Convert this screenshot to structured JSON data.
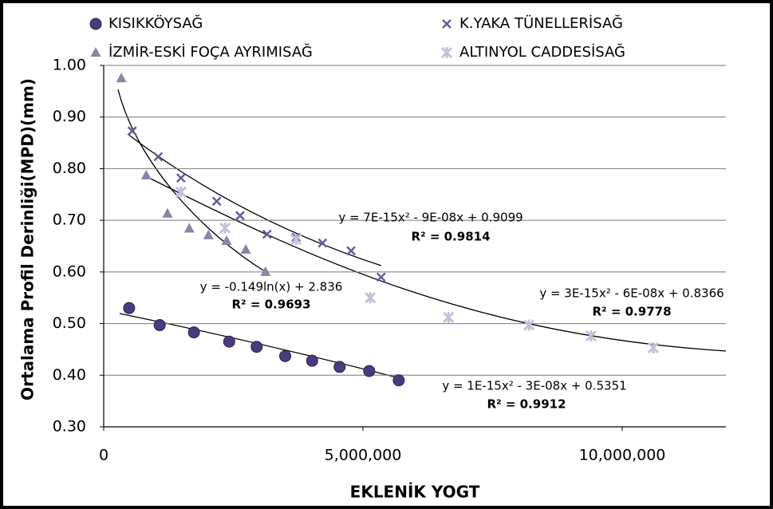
{
  "chart_data": {
    "type": "scatter",
    "x_label": "EKLENİK YOGT",
    "y_label": "Ortalama Profil Derinliği(MPD)(mm)",
    "xlim": [
      0,
      12000000
    ],
    "xticks": [
      0,
      {
        "value": 5000000,
        "label": "5,000,000"
      },
      {
        "value": 10000000,
        "label": "10,000,000"
      }
    ],
    "ylim": [
      0.3,
      1.0
    ],
    "yticks": [
      {
        "value": 0.3,
        "label": "0.30"
      },
      {
        "value": 0.4,
        "label": "0.40"
      },
      {
        "value": 0.5,
        "label": "0.50"
      },
      {
        "value": 0.6,
        "label": "0.60"
      },
      {
        "value": 0.7,
        "label": "0.70"
      },
      {
        "value": 0.8,
        "label": "0.80"
      },
      {
        "value": 0.9,
        "label": "0.90"
      },
      {
        "value": 1.0,
        "label": "1.00"
      }
    ],
    "grid": true,
    "series": [
      {
        "name": "KISIKKÖYSAĞ",
        "color": "#4b3b7e",
        "marker": "circle",
        "x": [
          490000,
          1080000,
          1740000,
          2420000,
          2950000,
          3500000,
          4020000,
          4550000,
          5120000,
          5690000
        ],
        "values": [
          0.53,
          0.497,
          0.483,
          0.465,
          0.455,
          0.437,
          0.428,
          0.416,
          0.408,
          0.39
        ]
      },
      {
        "name": "K.YAKA TÜNELLERİSAĞ",
        "color": "#6a5a9c",
        "marker": "x",
        "x": [
          550000,
          1050000,
          1490000,
          2180000,
          2630000,
          3150000,
          3710000,
          4220000,
          4770000,
          5350000
        ],
        "values": [
          0.873,
          0.823,
          0.782,
          0.737,
          0.709,
          0.673,
          0.667,
          0.656,
          0.641,
          0.59
        ]
      },
      {
        "name": "İZMİR-ESKİ FOÇA AYRIMISAĞ",
        "color": "#8a84a6",
        "marker": "triangle",
        "x": [
          340000,
          820000,
          1230000,
          1650000,
          2020000,
          2370000,
          2740000,
          3120000
        ],
        "values": [
          0.975,
          0.787,
          0.713,
          0.684,
          0.671,
          0.66,
          0.643,
          0.6
        ]
      },
      {
        "name": "ALTINYOL CADDESİSAĞ",
        "color": "#c4c0da",
        "marker": "star",
        "x": [
          1490000,
          2340000,
          3710000,
          5140000,
          6650000,
          8200000,
          9400000,
          10600000
        ],
        "values": [
          0.755,
          0.685,
          0.663,
          0.55,
          0.512,
          0.497,
          0.476,
          0.453
        ]
      }
    ],
    "annotations": [
      {
        "equation": "y = 7E-15x² - 9E-08x + 0.9099",
        "r2": "R² = 0.9814"
      },
      {
        "equation": "y = -0.149ln(x) + 2.836",
        "r2": "R² = 0.9693"
      },
      {
        "equation": "y = 3E-15x² - 6E-08x + 0.8366",
        "r2": "R² = 0.9778"
      },
      {
        "equation": "y = 1E-15x² - 3E-08x + 0.5351",
        "r2": "R² = 0.9912"
      }
    ]
  }
}
